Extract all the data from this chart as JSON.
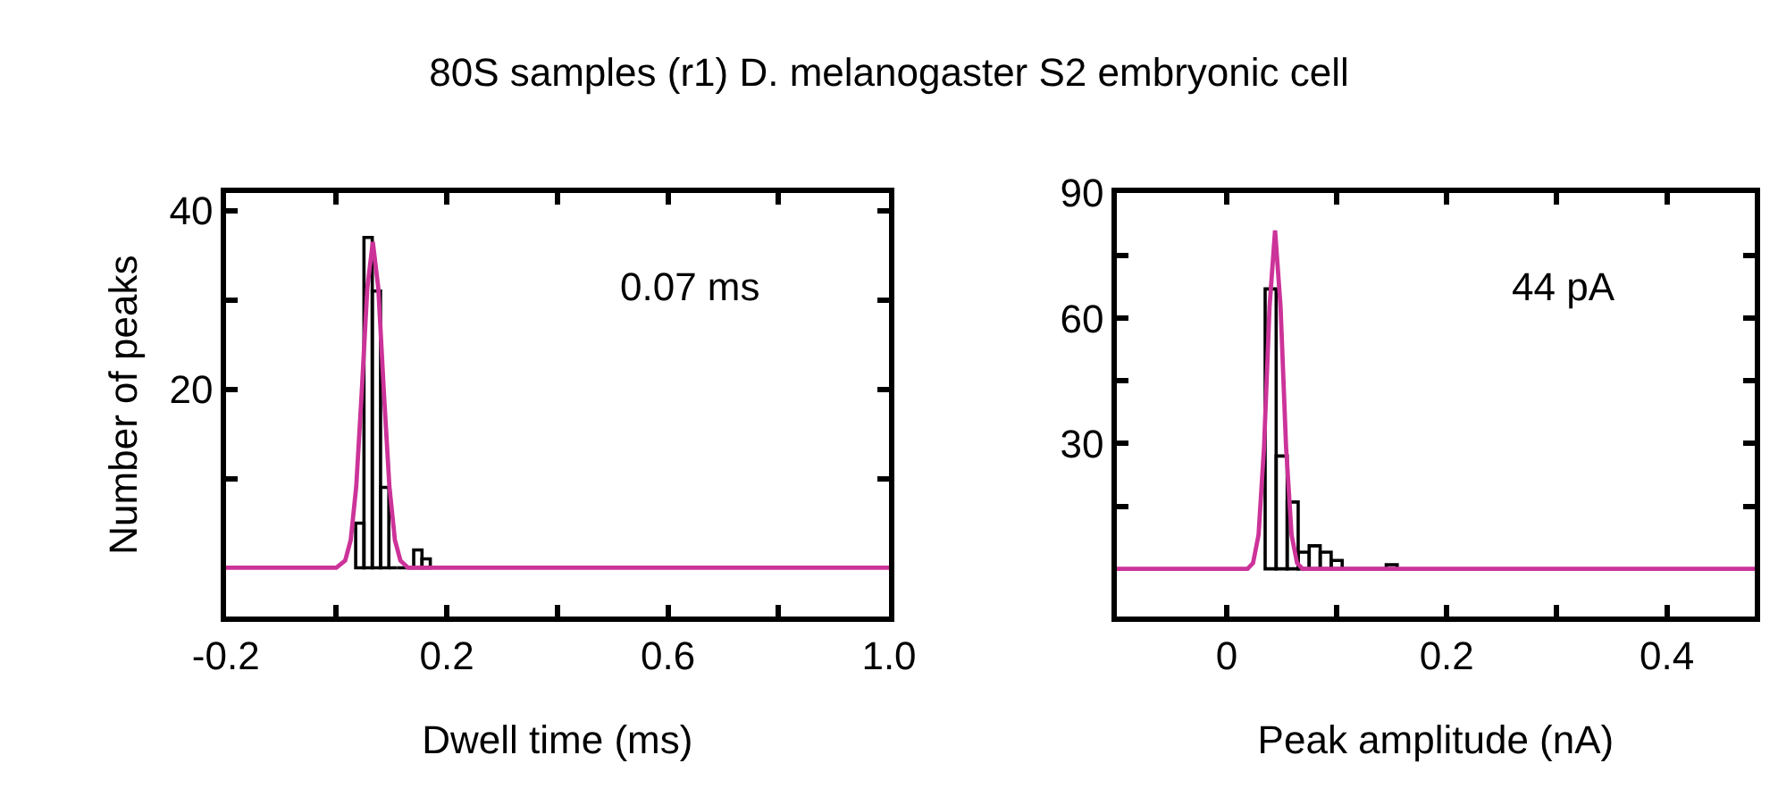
{
  "chart_data": [
    {
      "type": "histogram",
      "title": "80S samples (r1) D. melanogaster S2 embryonic cell",
      "xlabel": "Dwell time (ms)",
      "ylabel": "Number of peaks",
      "annotations": [
        "0.07 ms"
      ],
      "xlim": [
        -0.2,
        1.0
      ],
      "xticks": [
        -0.2,
        {
          "value": 0,
          "label": null
        },
        0.2,
        {
          "value": 0.4,
          "label": null
        },
        0.6,
        {
          "value": 0.8,
          "label": null
        },
        {
          "value": 1.0,
          "label": "1.0"
        }
      ],
      "ylim": [
        -5.5,
        42
      ],
      "yticks": [
        {
          "value": 10,
          "label": null
        },
        20,
        {
          "value": 30,
          "label": null
        },
        40
      ],
      "grid": false,
      "series": [
        {
          "color": "#000000",
          "bins": [
            0.035,
            0.05,
            0.065,
            0.08,
            0.095,
            0.11,
            0.125,
            0.14,
            0.155,
            0.17
          ],
          "values": [
            5,
            37,
            31,
            9,
            0,
            0,
            0,
            2,
            1
          ]
        },
        {
          "type": "line",
          "color": "#cc3399",
          "x": [
            -0.2,
            0.0,
            0.016,
            0.026,
            0.036,
            0.046,
            0.056,
            0.066,
            0.076,
            0.086,
            0.096,
            0.106,
            0.116,
            0.13,
            1.0
          ],
          "values": [
            0,
            0,
            0.8,
            3.1,
            9.1,
            19.7,
            31.3,
            36.5,
            31.3,
            19.7,
            9.1,
            3.1,
            0.8,
            0,
            0
          ]
        }
      ]
    },
    {
      "type": "histogram",
      "xlabel": "Peak amplitude (nA)",
      "annotations": [
        "44 pA"
      ],
      "xlim": [
        -0.1,
        0.48
      ],
      "xticks": [
        0,
        {
          "value": 0.1,
          "label": null
        },
        0.2,
        {
          "value": 0.3,
          "label": null
        },
        0.4
      ],
      "ylim": [
        -11.5,
        90
      ],
      "yticks": [
        {
          "value": 15,
          "label": null
        },
        30,
        {
          "value": 45,
          "label": null
        },
        60,
        {
          "value": 75,
          "label": null
        },
        90
      ],
      "grid": false,
      "series": [
        {
          "color": "#000000",
          "bins": [
            0.035,
            0.045,
            0.055,
            0.065,
            0.075,
            0.085,
            0.095,
            0.105,
            0.115,
            0.125,
            0.135,
            0.145,
            0.155
          ],
          "values": [
            67,
            27,
            16,
            4,
            5.5,
            4,
            2,
            0,
            0,
            0,
            0,
            1
          ]
        },
        {
          "type": "line",
          "color": "#cc3399",
          "x": [
            -0.1,
            0.019,
            0.024,
            0.029,
            0.034,
            0.039,
            0.044,
            0.049,
            0.054,
            0.059,
            0.064,
            0.069,
            0.48
          ],
          "values": [
            0,
            0,
            1.4,
            8.1,
            29.2,
            62.8,
            81,
            62.8,
            29.2,
            8.1,
            1.4,
            0,
            0
          ]
        }
      ]
    }
  ]
}
